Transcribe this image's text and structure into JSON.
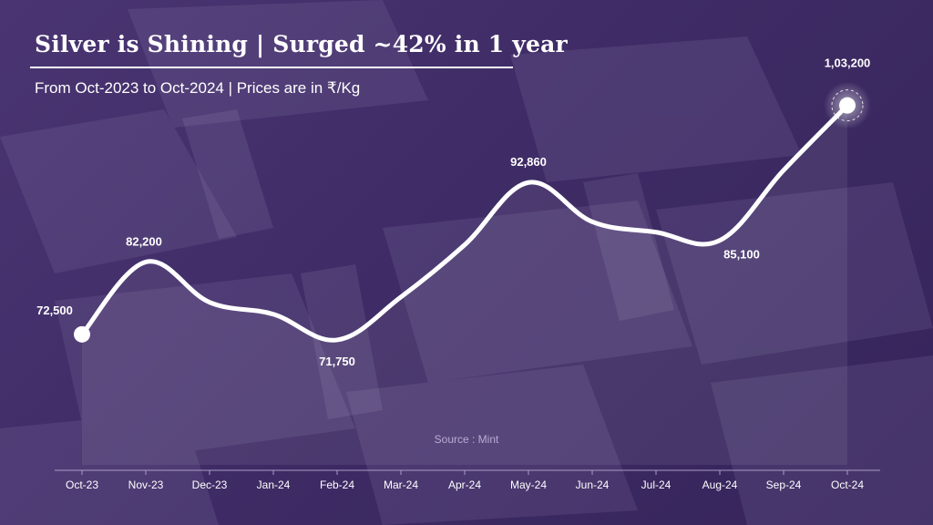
{
  "header": {
    "title": "Silver is Shining | Surged ~42% in 1 year",
    "subtitle": "From Oct-2023 to Oct-2024 | Prices are in ₹/Kg"
  },
  "source": "Source : Mint",
  "colors": {
    "background": "#3f2c66",
    "line": "#ffffff",
    "text": "#ffffff"
  },
  "chart_data": {
    "type": "line",
    "title": "Silver is Shining | Surged ~42% in 1 year",
    "subtitle": "From Oct-2023 to Oct-2024 | Prices are in ₹/Kg",
    "xlabel": "",
    "ylabel": "",
    "categories": [
      "Oct-23",
      "Nov-23",
      "Dec-23",
      "Jan-24",
      "Feb-24",
      "Mar-24",
      "Apr-24",
      "May-24",
      "Jun-24",
      "Jul-24",
      "Aug-24",
      "Sep-24",
      "Oct-24"
    ],
    "values": [
      72500,
      82200,
      76800,
      75200,
      71750,
      77500,
      84500,
      92860,
      87600,
      86200,
      85100,
      94500,
      103200
    ],
    "data_labels": [
      {
        "index": 0,
        "text": "72,500"
      },
      {
        "index": 1,
        "text": "82,200"
      },
      {
        "index": 4,
        "text": "71,750"
      },
      {
        "index": 7,
        "text": "92,860"
      },
      {
        "index": 10,
        "text": "85,100"
      },
      {
        "index": 12,
        "text": "1,03,200"
      }
    ],
    "ylim": [
      55000,
      110000
    ],
    "grid": false,
    "legend": "none",
    "smooth": true
  }
}
